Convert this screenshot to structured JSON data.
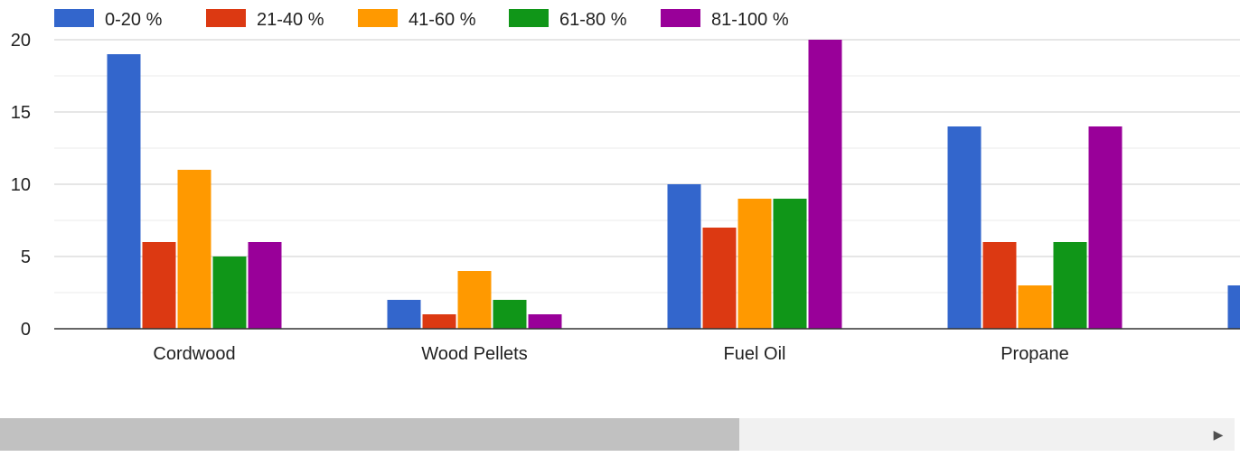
{
  "chart_data": {
    "type": "bar",
    "categories": [
      "Cordwood",
      "Wood Pellets",
      "Fuel Oil",
      "Propane",
      ""
    ],
    "series": [
      {
        "name": "0-20 %",
        "color": "#3366cc",
        "values": [
          19,
          2,
          10,
          14,
          3
        ]
      },
      {
        "name": "21-40 %",
        "color": "#dc3912",
        "values": [
          6,
          1,
          7,
          6,
          null
        ]
      },
      {
        "name": "41-60 %",
        "color": "#ff9900",
        "values": [
          11,
          4,
          9,
          3,
          null
        ]
      },
      {
        "name": "61-80 %",
        "color": "#109618",
        "values": [
          5,
          2,
          9,
          6,
          null
        ]
      },
      {
        "name": "81-100 %",
        "color": "#990099",
        "values": [
          6,
          1,
          20,
          14,
          null
        ]
      }
    ],
    "title": "",
    "xlabel": "",
    "ylabel": "",
    "ylim": [
      0,
      20
    ],
    "yticks": [
      0,
      5,
      10,
      15,
      20
    ],
    "grid": true,
    "legend_position": "top"
  },
  "scrollbar": {
    "arrow_icon": "triangle-right-icon",
    "arrow_glyph": "▶"
  }
}
